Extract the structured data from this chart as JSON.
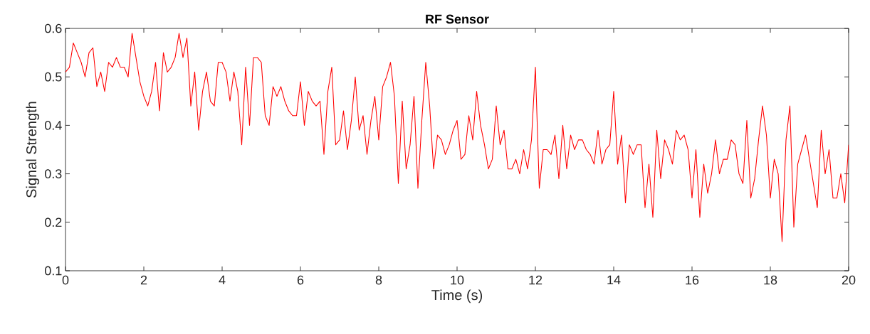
{
  "chart_data": {
    "type": "line",
    "title": "RF Sensor",
    "xlabel": "Time (s)",
    "ylabel": "Signal Strength",
    "color": "#ff0000",
    "xlim": [
      0,
      20
    ],
    "ylim": [
      0.1,
      0.6
    ],
    "xticks": [
      0,
      2,
      4,
      6,
      8,
      10,
      12,
      14,
      16,
      18,
      20
    ],
    "yticks": [
      0.1,
      0.2,
      0.3,
      0.4,
      0.5,
      0.6
    ],
    "x": [
      0,
      0.1,
      0.2,
      0.3,
      0.4,
      0.5,
      0.6,
      0.7,
      0.8,
      0.9,
      1,
      1.1,
      1.2,
      1.3,
      1.4,
      1.5,
      1.6,
      1.7,
      1.8,
      1.9,
      2,
      2.1,
      2.2,
      2.3,
      2.4,
      2.5,
      2.6,
      2.7,
      2.8,
      2.9,
      3,
      3.1,
      3.2,
      3.3,
      3.4,
      3.5,
      3.6,
      3.7,
      3.8,
      3.9,
      4,
      4.1,
      4.2,
      4.3,
      4.4,
      4.5,
      4.6,
      4.7,
      4.8,
      4.9,
      5,
      5.1,
      5.2,
      5.3,
      5.4,
      5.5,
      5.6,
      5.7,
      5.8,
      5.9,
      6,
      6.1,
      6.2,
      6.3,
      6.4,
      6.5,
      6.6,
      6.7,
      6.8,
      6.9,
      7,
      7.1,
      7.2,
      7.3,
      7.4,
      7.5,
      7.6,
      7.7,
      7.8,
      7.9,
      8,
      8.1,
      8.2,
      8.3,
      8.4,
      8.5,
      8.6,
      8.7,
      8.8,
      8.9,
      9,
      9.1,
      9.2,
      9.3,
      9.4,
      9.5,
      9.6,
      9.7,
      9.8,
      9.9,
      10,
      10.1,
      10.2,
      10.3,
      10.4,
      10.5,
      10.6,
      10.7,
      10.8,
      10.9,
      11,
      11.1,
      11.2,
      11.3,
      11.4,
      11.5,
      11.6,
      11.7,
      11.8,
      11.9,
      12,
      12.1,
      12.2,
      12.3,
      12.4,
      12.5,
      12.6,
      12.7,
      12.8,
      12.9,
      13,
      13.1,
      13.2,
      13.3,
      13.4,
      13.5,
      13.6,
      13.7,
      13.8,
      13.9,
      14,
      14.1,
      14.2,
      14.3,
      14.4,
      14.5,
      14.6,
      14.7,
      14.8,
      14.9,
      15,
      15.1,
      15.2,
      15.3,
      15.4,
      15.5,
      15.6,
      15.7,
      15.8,
      15.9,
      16,
      16.1,
      16.2,
      16.3,
      16.4,
      16.5,
      16.6,
      16.7,
      16.8,
      16.9,
      17,
      17.1,
      17.2,
      17.3,
      17.4,
      17.5,
      17.6,
      17.7,
      17.8,
      17.9,
      18,
      18.1,
      18.2,
      18.3,
      18.4,
      18.5,
      18.6,
      18.7,
      18.8,
      18.9,
      19,
      19.1,
      19.2,
      19.3,
      19.4,
      19.5,
      19.6,
      19.7,
      19.8,
      19.9,
      20
    ],
    "values": [
      0.51,
      0.52,
      0.57,
      0.55,
      0.53,
      0.5,
      0.55,
      0.56,
      0.48,
      0.51,
      0.47,
      0.53,
      0.52,
      0.54,
      0.52,
      0.52,
      0.5,
      0.59,
      0.54,
      0.49,
      0.46,
      0.44,
      0.47,
      0.53,
      0.43,
      0.55,
      0.51,
      0.52,
      0.54,
      0.59,
      0.54,
      0.58,
      0.44,
      0.51,
      0.39,
      0.47,
      0.51,
      0.45,
      0.44,
      0.53,
      0.53,
      0.51,
      0.45,
      0.51,
      0.47,
      0.36,
      0.52,
      0.4,
      0.54,
      0.54,
      0.53,
      0.42,
      0.4,
      0.48,
      0.46,
      0.48,
      0.45,
      0.43,
      0.42,
      0.42,
      0.49,
      0.4,
      0.47,
      0.45,
      0.44,
      0.45,
      0.34,
      0.47,
      0.52,
      0.36,
      0.37,
      0.43,
      0.35,
      0.41,
      0.5,
      0.39,
      0.42,
      0.34,
      0.41,
      0.46,
      0.37,
      0.48,
      0.5,
      0.53,
      0.46,
      0.28,
      0.45,
      0.31,
      0.36,
      0.46,
      0.27,
      0.41,
      0.53,
      0.44,
      0.31,
      0.38,
      0.37,
      0.34,
      0.36,
      0.39,
      0.41,
      0.33,
      0.34,
      0.42,
      0.37,
      0.47,
      0.4,
      0.36,
      0.31,
      0.33,
      0.44,
      0.36,
      0.39,
      0.31,
      0.31,
      0.33,
      0.3,
      0.35,
      0.31,
      0.37,
      0.52,
      0.27,
      0.35,
      0.35,
      0.34,
      0.38,
      0.29,
      0.4,
      0.31,
      0.38,
      0.35,
      0.37,
      0.37,
      0.35,
      0.34,
      0.32,
      0.39,
      0.32,
      0.35,
      0.36,
      0.47,
      0.32,
      0.38,
      0.24,
      0.36,
      0.34,
      0.36,
      0.36,
      0.23,
      0.32,
      0.21,
      0.39,
      0.29,
      0.37,
      0.35,
      0.32,
      0.39,
      0.37,
      0.38,
      0.35,
      0.25,
      0.35,
      0.21,
      0.32,
      0.26,
      0.3,
      0.37,
      0.3,
      0.33,
      0.33,
      0.37,
      0.36,
      0.3,
      0.28,
      0.41,
      0.25,
      0.29,
      0.37,
      0.44,
      0.38,
      0.25,
      0.33,
      0.3,
      0.16,
      0.37,
      0.44,
      0.19,
      0.32,
      0.35,
      0.38,
      0.33,
      0.28,
      0.23,
      0.39,
      0.3,
      0.35,
      0.25,
      0.25,
      0.3,
      0.24,
      0.36
    ]
  }
}
